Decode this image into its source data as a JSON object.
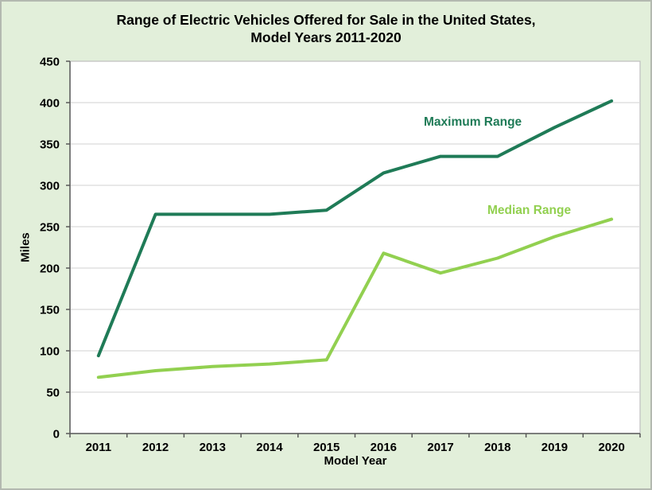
{
  "figure": {
    "title_line1": "Range of Electric Vehicles Offered for Sale in the United States,",
    "title_line2": "Model Years 2011-2020"
  },
  "chart_data": {
    "type": "line",
    "title": "Range of Electric Vehicles Offered for Sale in the United States, Model Years 2011-2020",
    "xlabel": "Model Year",
    "ylabel": "Miles",
    "categories": [
      "2011",
      "2012",
      "2013",
      "2014",
      "2015",
      "2016",
      "2017",
      "2018",
      "2019",
      "2020"
    ],
    "series": [
      {
        "name": "Maximum Range",
        "color": "#1F7B57",
        "values": [
          94,
          265,
          265,
          265,
          270,
          315,
          335,
          335,
          370,
          402
        ]
      },
      {
        "name": "Median Range",
        "color": "#92D050",
        "values": [
          68,
          76,
          81,
          84,
          89,
          218,
          194,
          212,
          238,
          259
        ]
      }
    ],
    "ylim": [
      0,
      450
    ],
    "y_tick_step": 50,
    "y_ticks": [
      0,
      50,
      100,
      150,
      200,
      250,
      300,
      350,
      400,
      450
    ],
    "grid": "horizontal",
    "legend_position": "inline-labels",
    "colors": {
      "page_bg": "#E2EFDA",
      "plot_bg": "#FFFFFF",
      "gridline": "#D9D9D9",
      "plot_border": "#BFBFBF",
      "axis": "#595959",
      "tick_label": "#000000"
    }
  }
}
